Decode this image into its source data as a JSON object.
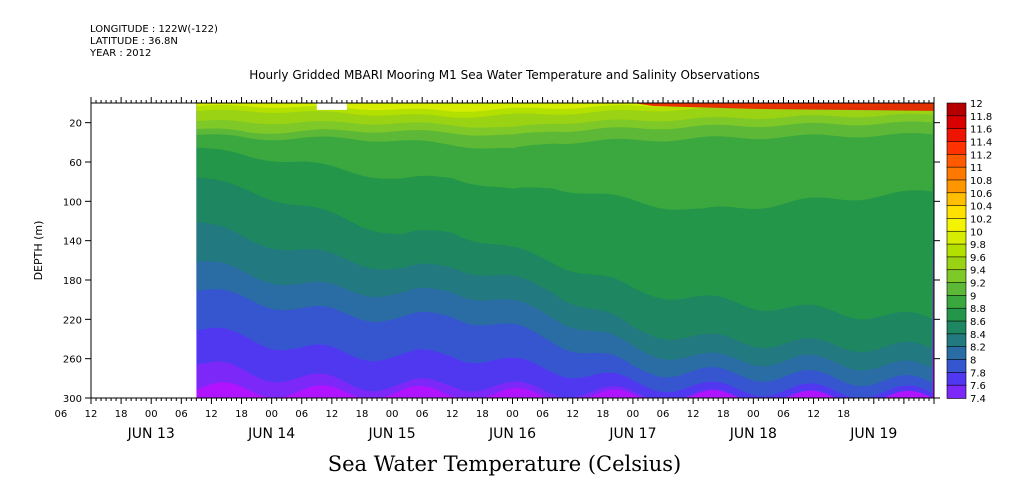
{
  "header": {
    "longitude": "LONGITUDE : 122W(-122)",
    "latitude": "LATITUDE : 36.8N",
    "year": "YEAR : 2012"
  },
  "chart_data": {
    "type": "heatmap",
    "title": "Hourly Gridded MBARI Mooring M1 Sea Water Temperature and Salinity Observations",
    "xlabel": "Sea Water Temperature (Celsius)",
    "ylabel": "DEPTH (m)",
    "x_range_hours_from_jun13_00": [
      -12,
      156
    ],
    "y_range_m": [
      0,
      300
    ],
    "y_inverted": true,
    "y_ticks": [
      20,
      60,
      100,
      140,
      180,
      220,
      260,
      300
    ],
    "x_hour_ticks": [
      "06",
      "12",
      "18",
      "00",
      "06",
      "12",
      "18",
      "00",
      "06",
      "12",
      "18",
      "00",
      "06",
      "12",
      "18",
      "00",
      "06",
      "12",
      "18",
      "00",
      "06",
      "12",
      "18",
      "00",
      "06",
      "12",
      "18"
    ],
    "x_date_labels": [
      "JUN 13",
      "JUN 14",
      "JUN 15",
      "JUN 16",
      "JUN 17",
      "JUN 18",
      "JUN 19"
    ],
    "data_start_hour": 9,
    "colorbar_levels": [
      12,
      11.8,
      11.6,
      11.4,
      11.2,
      11,
      10.8,
      10.6,
      10.4,
      10.2,
      10,
      9.8,
      9.6,
      9.4,
      9.2,
      9,
      8.8,
      8.6,
      8.4,
      8.2,
      8,
      7.8,
      7.6,
      7.4
    ],
    "colorbar_colors": [
      "#b40000",
      "#d80000",
      "#ee1400",
      "#ff3200",
      "#ff5a00",
      "#ff7800",
      "#ff9600",
      "#ffbe00",
      "#ffe000",
      "#f4f400",
      "#d6ec00",
      "#b4e000",
      "#9ad214",
      "#7ec828",
      "#5cb836",
      "#3aa83e",
      "#24964a",
      "#1e8660",
      "#227a80",
      "#2a6ca4",
      "#3656d0",
      "#5038f0",
      "#7c28f8",
      "#b014ff"
    ],
    "depth_contours": [
      {
        "level": 10,
        "points": [
          [
            9,
            3
          ],
          [
            30,
            4
          ],
          [
            60,
            8
          ],
          [
            80,
            5
          ],
          [
            96,
            3
          ],
          [
            110,
            2
          ],
          [
            130,
            1
          ],
          [
            156,
            0
          ]
        ]
      },
      {
        "level": 9.8,
        "points": [
          [
            9,
            8
          ],
          [
            30,
            9
          ],
          [
            60,
            14
          ],
          [
            80,
            11
          ],
          [
            96,
            8
          ],
          [
            110,
            6
          ],
          [
            130,
            4
          ],
          [
            156,
            2
          ]
        ]
      },
      {
        "level": 9.6,
        "points": [
          [
            9,
            18
          ],
          [
            20,
            20
          ],
          [
            40,
            20
          ],
          [
            60,
            22
          ],
          [
            72,
            26
          ],
          [
            80,
            20
          ],
          [
            96,
            18
          ],
          [
            110,
            16
          ],
          [
            130,
            14
          ],
          [
            156,
            12
          ]
        ]
      },
      {
        "level": 9.4,
        "points": [
          [
            9,
            26
          ],
          [
            20,
            30
          ],
          [
            40,
            28
          ],
          [
            60,
            30
          ],
          [
            72,
            34
          ],
          [
            80,
            28
          ],
          [
            96,
            26
          ],
          [
            110,
            24
          ],
          [
            130,
            22
          ],
          [
            156,
            20
          ]
        ]
      },
      {
        "level": 9.2,
        "points": [
          [
            9,
            32
          ],
          [
            20,
            36
          ],
          [
            40,
            36
          ],
          [
            60,
            42
          ],
          [
            72,
            48
          ],
          [
            80,
            40
          ],
          [
            96,
            38
          ],
          [
            110,
            36
          ],
          [
            130,
            34
          ],
          [
            156,
            32
          ]
        ]
      },
      {
        "level": 9.0,
        "points": [
          [
            9,
            45
          ],
          [
            20,
            55
          ],
          [
            30,
            60
          ],
          [
            40,
            70
          ],
          [
            50,
            78
          ],
          [
            60,
            75
          ],
          [
            72,
            90
          ],
          [
            80,
            85
          ],
          [
            96,
            100
          ],
          [
            110,
            110
          ],
          [
            130,
            100
          ],
          [
            156,
            90
          ]
        ]
      },
      {
        "level": 8.8,
        "points": [
          [
            9,
            75
          ],
          [
            20,
            90
          ],
          [
            30,
            105
          ],
          [
            40,
            120
          ],
          [
            50,
            135
          ],
          [
            60,
            130
          ],
          [
            72,
            150
          ],
          [
            80,
            160
          ],
          [
            96,
            190
          ],
          [
            110,
            200
          ],
          [
            130,
            210
          ],
          [
            156,
            220
          ]
        ]
      },
      {
        "level": 8.6,
        "points": [
          [
            9,
            120
          ],
          [
            20,
            140
          ],
          [
            30,
            150
          ],
          [
            40,
            160
          ],
          [
            50,
            170
          ],
          [
            60,
            165
          ],
          [
            72,
            180
          ],
          [
            80,
            190
          ],
          [
            96,
            230
          ],
          [
            110,
            240
          ],
          [
            130,
            245
          ],
          [
            156,
            250
          ]
        ]
      },
      {
        "level": 8.4,
        "points": [
          [
            9,
            160
          ],
          [
            20,
            175
          ],
          [
            30,
            185
          ],
          [
            40,
            190
          ],
          [
            50,
            195
          ],
          [
            60,
            190
          ],
          [
            72,
            205
          ],
          [
            80,
            215
          ],
          [
            96,
            250
          ],
          [
            110,
            260
          ],
          [
            130,
            262
          ],
          [
            156,
            270
          ]
        ]
      },
      {
        "level": 8.2,
        "points": [
          [
            9,
            190
          ],
          [
            20,
            200
          ],
          [
            30,
            210
          ],
          [
            40,
            215
          ],
          [
            50,
            220
          ],
          [
            60,
            215
          ],
          [
            72,
            230
          ],
          [
            80,
            240
          ],
          [
            96,
            270
          ],
          [
            110,
            275
          ],
          [
            130,
            278
          ],
          [
            156,
            285
          ]
        ]
      },
      {
        "level": 8.0,
        "points": [
          [
            9,
            230
          ],
          [
            20,
            240
          ],
          [
            30,
            250
          ],
          [
            40,
            255
          ],
          [
            50,
            258
          ],
          [
            60,
            255
          ],
          [
            72,
            265
          ],
          [
            80,
            270
          ],
          [
            96,
            285
          ],
          [
            110,
            290
          ],
          [
            130,
            292
          ],
          [
            156,
            295
          ]
        ]
      },
      {
        "level": 7.8,
        "points": [
          [
            9,
            265
          ],
          [
            20,
            275
          ],
          [
            30,
            280
          ],
          [
            40,
            285
          ],
          [
            50,
            288
          ],
          [
            60,
            285
          ],
          [
            72,
            290
          ],
          [
            80,
            292
          ],
          [
            96,
            296
          ],
          [
            110,
            298
          ],
          [
            130,
            299
          ],
          [
            156,
            300
          ]
        ]
      },
      {
        "level": 7.6,
        "points": [
          [
            9,
            290
          ],
          [
            30,
            294
          ],
          [
            60,
            295
          ],
          [
            80,
            298
          ],
          [
            96,
            299
          ],
          [
            130,
            300
          ],
          [
            156,
            300
          ]
        ]
      }
    ]
  }
}
